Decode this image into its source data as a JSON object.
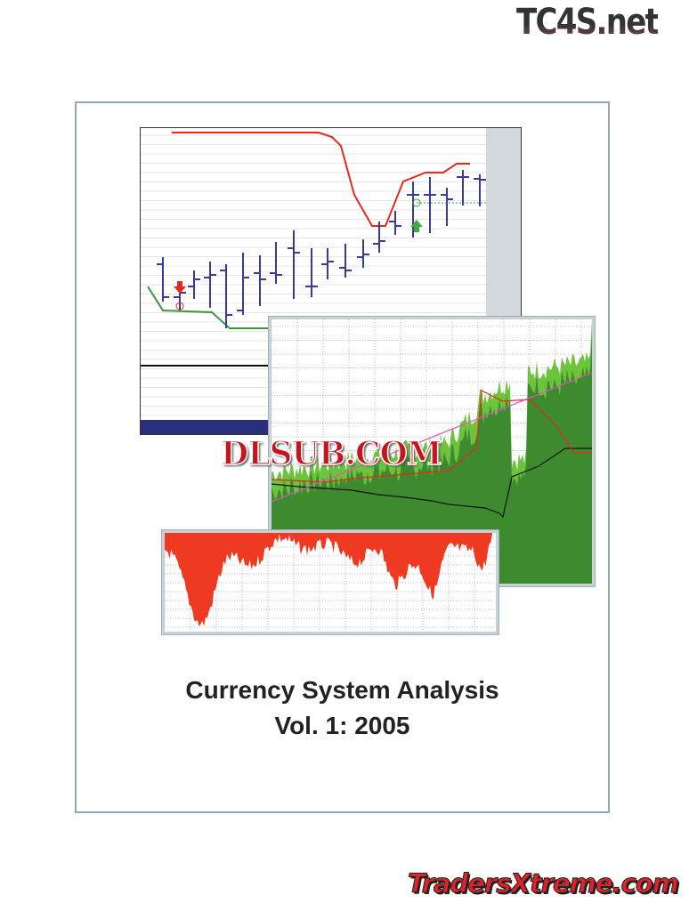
{
  "watermarks": {
    "top": "TC4S.net",
    "middle": "DLSUB.COM",
    "bottom": "TradersXtreme.com"
  },
  "cover": {
    "title_line1": "Currency System Analysis",
    "title_line2": "Vol. 1: 2005"
  },
  "colors": {
    "frame": "#93a6b3",
    "price_bars": "#3a3a9a",
    "upper_band": "#e8281e",
    "lower_band": "#3a9a3a",
    "equity_dark": "#3e8a2e",
    "equity_light": "#6cc43c",
    "drawdown": "#ee3a22",
    "trend_line": "#e050c0",
    "footer_bar": "#2a2f7a"
  },
  "icons": {
    "sell_signal": "arrow-down-icon",
    "buy_signal": "arrow-up-icon"
  }
}
